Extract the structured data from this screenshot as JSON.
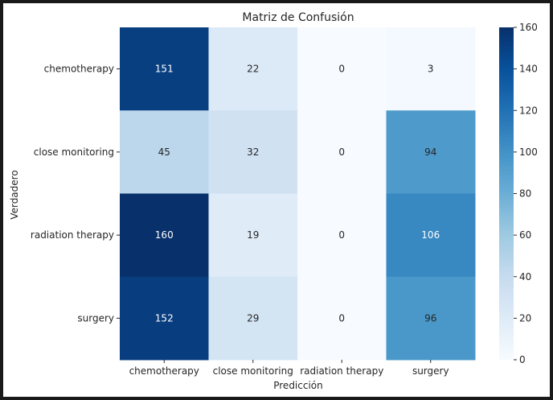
{
  "chart_data": {
    "type": "heatmap",
    "title": "Matriz de Confusión",
    "xlabel": "Predicción",
    "ylabel": "Verdadero",
    "x_categories": [
      "chemotherapy",
      "close monitoring",
      "radiation therapy",
      "surgery"
    ],
    "y_categories": [
      "chemotherapy",
      "close monitoring",
      "radiation therapy",
      "surgery"
    ],
    "values": [
      [
        151,
        22,
        0,
        3
      ],
      [
        45,
        32,
        0,
        94
      ],
      [
        160,
        19,
        0,
        106
      ],
      [
        152,
        29,
        0,
        96
      ]
    ],
    "colormap": "Blues",
    "colorbar": {
      "range": [
        0,
        160
      ],
      "ticks": [
        "0",
        "20",
        "40",
        "60",
        "80",
        "100",
        "120",
        "140",
        "160"
      ]
    }
  }
}
